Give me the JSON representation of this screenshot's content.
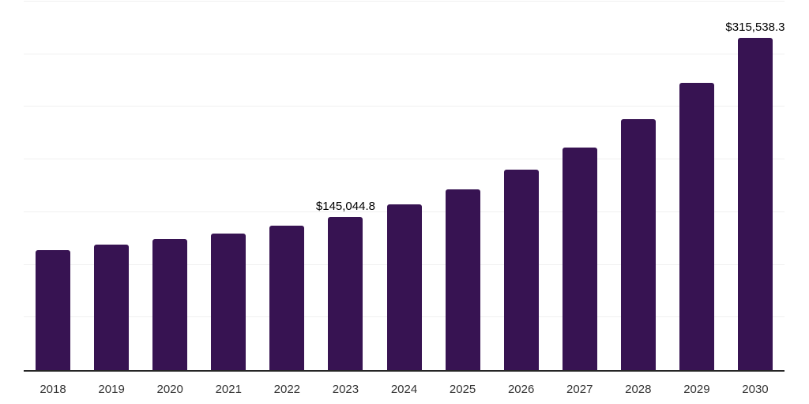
{
  "chart_data": {
    "type": "bar",
    "title": "",
    "xlabel": "",
    "ylabel": "",
    "categories": [
      "2018",
      "2019",
      "2020",
      "2021",
      "2022",
      "2023",
      "2024",
      "2025",
      "2026",
      "2027",
      "2028",
      "2029",
      "2030"
    ],
    "values": [
      114300,
      118900,
      124300,
      129600,
      136900,
      145044.8,
      157400,
      171800,
      190100,
      211700,
      238400,
      272500,
      315538.3
    ],
    "point_labels": [
      null,
      null,
      null,
      null,
      null,
      "$145,044.8",
      null,
      null,
      null,
      null,
      null,
      null,
      "$315,538.3"
    ],
    "ylim": [
      0,
      350000
    ],
    "gridline_step": 50000,
    "grid": true,
    "legend_position": "none",
    "y_axis_labels_visible": false,
    "colors": {
      "bar": "#371352",
      "gridline": "#f0f0f0",
      "axis": "#262626",
      "tick_label": "#333333",
      "value_label": "#000000",
      "background": "#ffffff"
    }
  }
}
